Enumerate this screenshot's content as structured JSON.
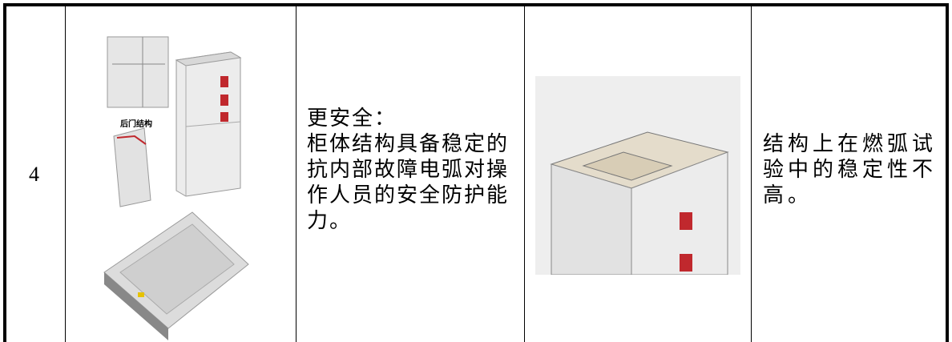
{
  "table": {
    "row": {
      "number": "4",
      "image_caption": "后门结构",
      "advantage_title": "更安全：",
      "advantage_text": "柜体结构具备稳定的抗内部故障电弧对操作人员的安全防护能力。",
      "comparison_text": "结构上在燃弧试验中的稳定性不高。"
    }
  }
}
